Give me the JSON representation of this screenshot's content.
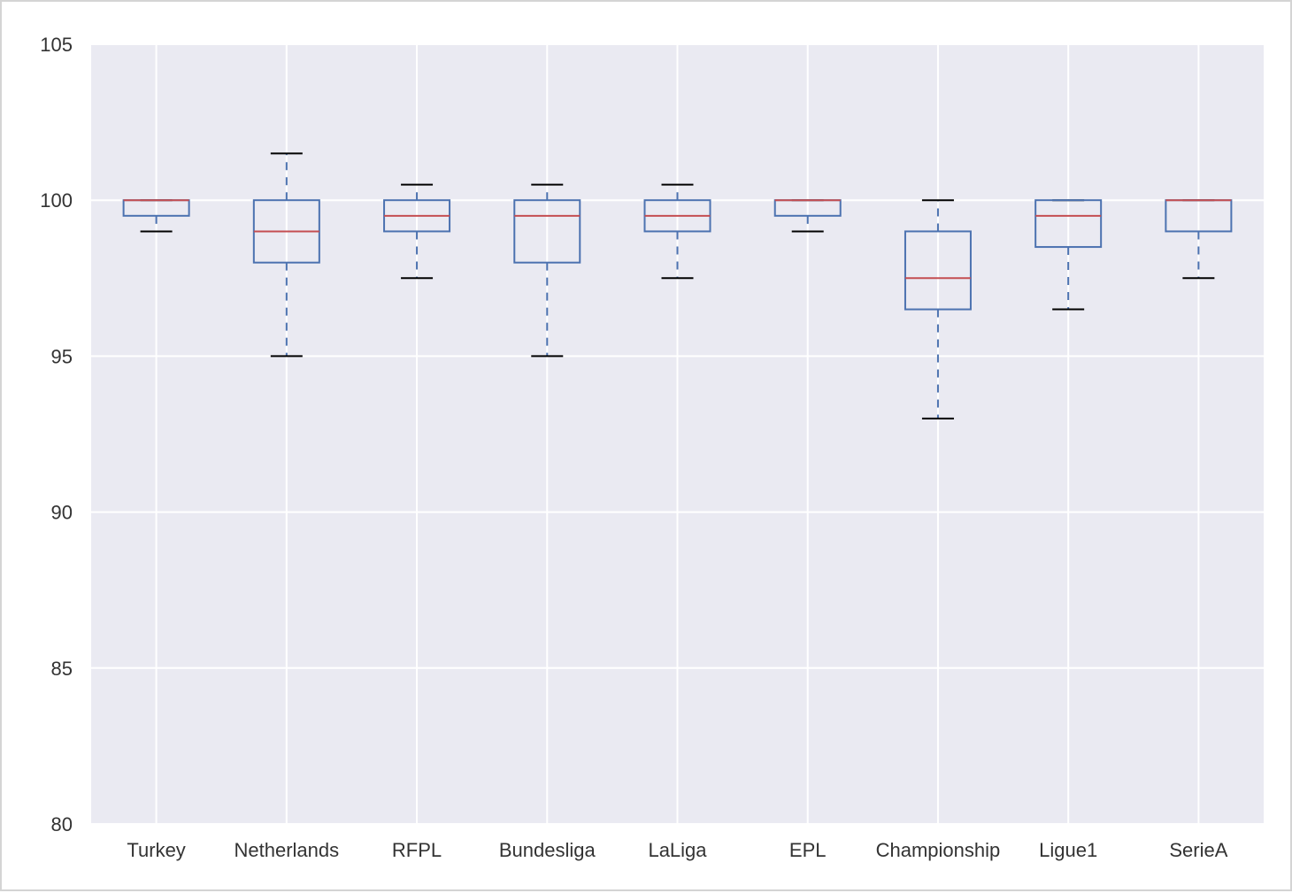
{
  "chart_data": {
    "type": "box",
    "title": "",
    "xlabel": "",
    "ylabel": "",
    "ylim": [
      80,
      105
    ],
    "yticks": [
      80,
      85,
      90,
      95,
      100,
      105
    ],
    "grid": true,
    "categories": [
      "Turkey",
      "Netherlands",
      "RFPL",
      "Bundesliga",
      "LaLiga",
      "EPL",
      "Championship",
      "Ligue1",
      "SerieA"
    ],
    "boxes": [
      {
        "category": "Turkey",
        "whisker_low": 99.0,
        "q1": 99.5,
        "median": 100.0,
        "q3": 100.0,
        "whisker_high": 100.0
      },
      {
        "category": "Netherlands",
        "whisker_low": 95.0,
        "q1": 98.0,
        "median": 99.0,
        "q3": 100.0,
        "whisker_high": 101.5
      },
      {
        "category": "RFPL",
        "whisker_low": 97.5,
        "q1": 99.0,
        "median": 99.5,
        "q3": 100.0,
        "whisker_high": 100.5
      },
      {
        "category": "Bundesliga",
        "whisker_low": 95.0,
        "q1": 98.0,
        "median": 99.5,
        "q3": 100.0,
        "whisker_high": 100.5
      },
      {
        "category": "LaLiga",
        "whisker_low": 97.5,
        "q1": 99.0,
        "median": 99.5,
        "q3": 100.0,
        "whisker_high": 100.5
      },
      {
        "category": "EPL",
        "whisker_low": 99.0,
        "q1": 99.5,
        "median": 100.0,
        "q3": 100.0,
        "whisker_high": 100.0
      },
      {
        "category": "Championship",
        "whisker_low": 93.0,
        "q1": 96.5,
        "median": 97.5,
        "q3": 99.0,
        "whisker_high": 100.0
      },
      {
        "category": "Ligue1",
        "whisker_low": 96.5,
        "q1": 98.5,
        "median": 99.5,
        "q3": 100.0,
        "whisker_high": 100.0
      },
      {
        "category": "SerieA",
        "whisker_low": 97.5,
        "q1": 99.0,
        "median": 100.0,
        "q3": 100.0,
        "whisker_high": 100.0
      }
    ],
    "colors": {
      "plot_background": "#eaeaf2",
      "grid": "#ffffff",
      "box": "#4c72b0",
      "median": "#c44e52",
      "whisker_cap": "#000000"
    }
  }
}
